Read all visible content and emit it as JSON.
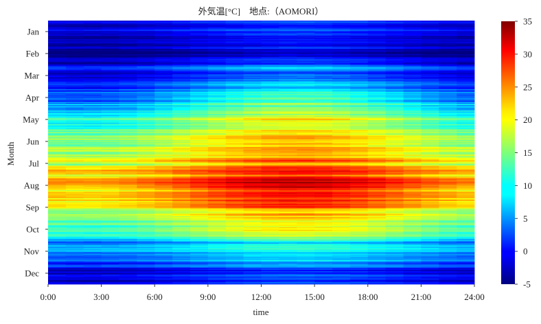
{
  "chart_data": {
    "type": "heatmap",
    "title": "外気温[°C]　地点:（AOMORI）",
    "xlabel": "time",
    "ylabel": "Month",
    "x_ticks": [
      "0:00",
      "3:00",
      "6:00",
      "9:00",
      "12:00",
      "15:00",
      "18:00",
      "21:00",
      "24:00"
    ],
    "x_range_hours": [
      0,
      24
    ],
    "y_categories": [
      "Jan",
      "Feb",
      "Mar",
      "Apr",
      "May",
      "Jun",
      "Jul",
      "Aug",
      "Sep",
      "Oct",
      "Nov",
      "Dec"
    ],
    "colorbar": {
      "min": -5,
      "max": 35,
      "ticks": [
        -5,
        0,
        5,
        10,
        15,
        20,
        25,
        30,
        35
      ],
      "colormap": "jet"
    },
    "approx_monthly_temperature": {
      "months": [
        "Jan",
        "Feb",
        "Mar",
        "Apr",
        "May",
        "Jun",
        "Jul",
        "Aug",
        "Sep",
        "Oct",
        "Nov",
        "Dec"
      ],
      "early_morning_min_c": [
        -3,
        -4,
        -1,
        5,
        10,
        15,
        20,
        22,
        18,
        11,
        4,
        -1
      ],
      "afternoon_max_c": [
        1,
        0,
        5,
        14,
        19,
        22,
        27,
        30,
        26,
        18,
        9,
        3
      ]
    },
    "grid": false,
    "legend": "colorbar-right"
  }
}
